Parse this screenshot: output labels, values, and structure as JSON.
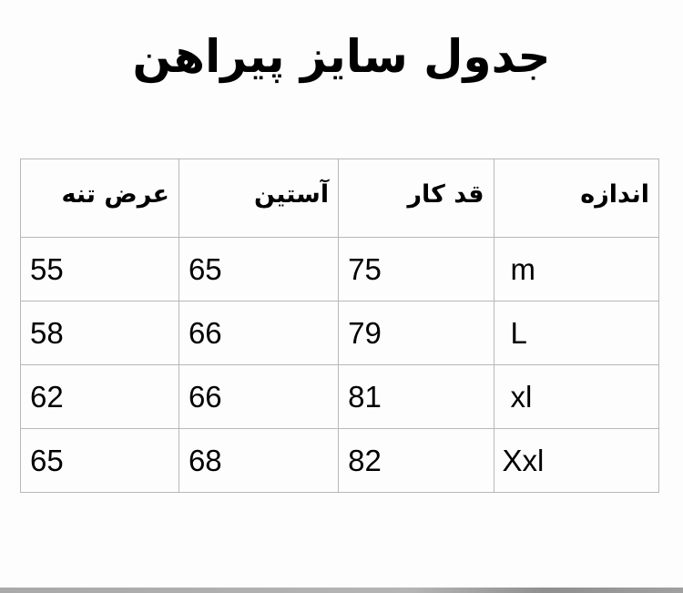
{
  "title": "جدول سایز پیراهن",
  "table": {
    "headers": [
      "اندازه",
      "قد کار",
      "آستین",
      "عرض تنه"
    ],
    "rows": [
      [
        "m",
        "75",
        "65",
        "55"
      ],
      [
        "L",
        "79",
        "66",
        "58"
      ],
      [
        "xl",
        "81",
        "66",
        "62"
      ],
      [
        "Xxl",
        "82",
        "68",
        "65"
      ]
    ]
  }
}
